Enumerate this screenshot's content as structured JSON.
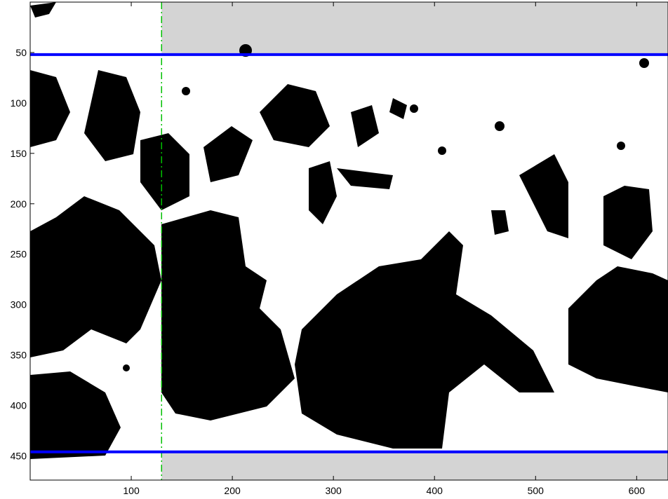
{
  "chart_data": {
    "type": "image",
    "xlim": [
      0,
      631
    ],
    "ylim": [
      0,
      474
    ],
    "y_reverse": true,
    "xticks": [
      100,
      200,
      300,
      400,
      500,
      600
    ],
    "yticks": [
      50,
      100,
      150,
      200,
      250,
      300,
      350,
      400,
      450
    ],
    "hlines": [
      52,
      446
    ],
    "hline_color": "#0000ff",
    "vline": 130,
    "vline_color": "#00c000",
    "shade_color": "#d4d4d4",
    "background": "#ffffff"
  }
}
